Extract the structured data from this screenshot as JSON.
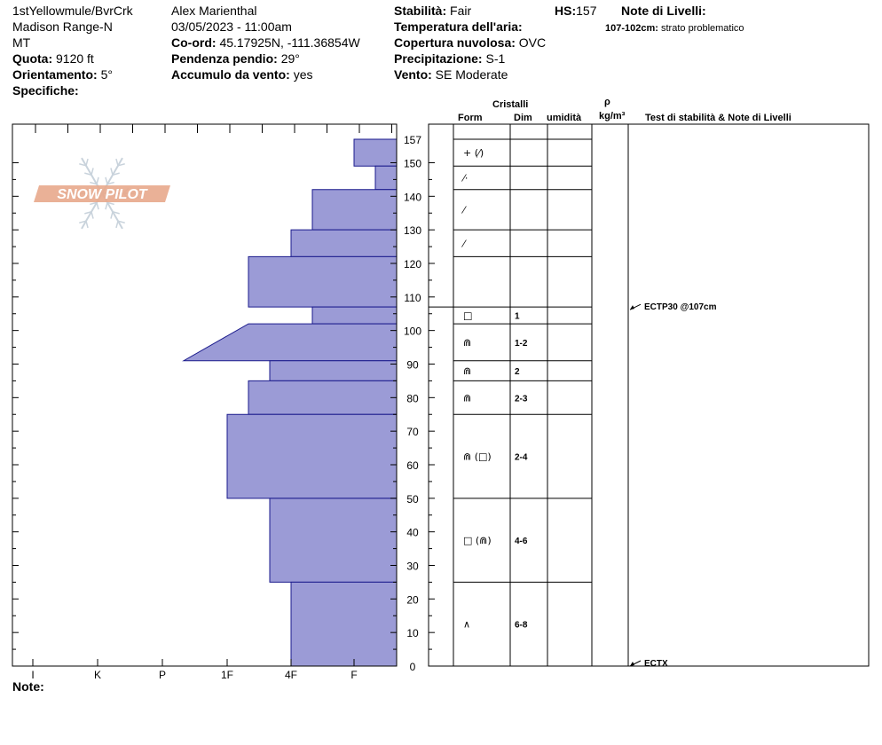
{
  "header": {
    "location": "1stYellowmule/BvrCrk",
    "range": "Madison Range-N",
    "state": "MT",
    "quota_label": "Quota:",
    "quota_value": "9120 ft",
    "orientamento_label": "Orientamento:",
    "orientamento_value": "5°",
    "specifiche_label": "Specifiche:",
    "observer": "Alex Marienthal",
    "datetime": "03/05/2023 - 11:00am",
    "coord_label": "Co-ord:",
    "coord_value": "45.17925N, -111.36854W",
    "pendenza_label": "Pendenza pendio:",
    "pendenza_value": "29°",
    "accumulo_label": "Accumulo da vento:",
    "accumulo_value": "yes",
    "stabilita_label": "Stabilità:",
    "stabilita_value": "Fair",
    "hs_label": "HS:",
    "hs_value": "157",
    "temp_label": "Temperatura dell'aria:",
    "copertura_label": "Copertura nuvolosa:",
    "copertura_value": "OVC",
    "precip_label": "Precipitazione:",
    "precip_value": "S-1",
    "vento_label": "Vento:",
    "vento_value": "SE Moderate",
    "note_livelli_label": "Note di Livelli:",
    "note_livelli_range": "107-102cm:",
    "note_livelli_text": "strato problematico"
  },
  "columns": {
    "cristalli": "Cristalli",
    "form": "Form",
    "dim": "Dim",
    "umidita": "umidità",
    "rho": "ρ",
    "density_unit": "kg/m³",
    "tests": "Test di stabilità & Note di Livelli"
  },
  "logo_text": "SNOW PILOT",
  "note_label": "Note:",
  "chart_data": {
    "type": "bar",
    "title": "",
    "height_axis": {
      "ticks": [
        0,
        10,
        20,
        30,
        40,
        50,
        60,
        70,
        80,
        90,
        100,
        110,
        120,
        130,
        140,
        150,
        157
      ],
      "range": [
        0,
        157
      ]
    },
    "hardness_axis": {
      "labels": [
        "I",
        "K",
        "P",
        "1F",
        "4F",
        "F"
      ]
    },
    "layers": [
      {
        "top": 157,
        "bottom": 149,
        "hardness": "F",
        "hardness_bottom": "F",
        "form": "+ (⁄)",
        "dim": ""
      },
      {
        "top": 149,
        "bottom": 142,
        "hardness": "F+",
        "hardness_bottom": "F+",
        "form": "⁄·",
        "dim": ""
      },
      {
        "top": 142,
        "bottom": 130,
        "hardness": "4F+",
        "hardness_bottom": "4F+",
        "form": "⁄",
        "dim": ""
      },
      {
        "top": 130,
        "bottom": 122,
        "hardness": "4F",
        "hardness_bottom": "4F",
        "form": "⁄",
        "dim": ""
      },
      {
        "top": 122,
        "bottom": 107,
        "hardness": "1F+",
        "hardness_bottom": "1F+",
        "form": "",
        "dim": ""
      },
      {
        "top": 107,
        "bottom": 102,
        "hardness": "4F+",
        "hardness_bottom": "4F+",
        "form": "□",
        "dim": "1"
      },
      {
        "top": 102,
        "bottom": 91,
        "hardness": "1F+",
        "hardness_bottom": "P+",
        "form": "⋒",
        "dim": "1-2"
      },
      {
        "top": 91,
        "bottom": 85,
        "hardness": "4F-",
        "hardness_bottom": "4F-",
        "form": "⋒",
        "dim": "2"
      },
      {
        "top": 85,
        "bottom": 75,
        "hardness": "1F+",
        "hardness_bottom": "1F+",
        "form": "⋒",
        "dim": "2-3"
      },
      {
        "top": 75,
        "bottom": 50,
        "hardness": "1F",
        "hardness_bottom": "1F",
        "form": "⋒ (□)",
        "dim": "2-4"
      },
      {
        "top": 50,
        "bottom": 25,
        "hardness": "4F-",
        "hardness_bottom": "4F-",
        "form": "□ (⋒)",
        "dim": "4-6"
      },
      {
        "top": 25,
        "bottom": 0,
        "hardness": "4F",
        "hardness_bottom": "4F",
        "form": "∧",
        "dim": "6-8"
      }
    ],
    "tests": [
      {
        "height": 107,
        "label": "ECTP30 @107cm"
      },
      {
        "height": 0,
        "label": "ECTX"
      }
    ],
    "grid": false
  },
  "colors": {
    "layer_fill": "#9b9bd6",
    "layer_stroke": "#1a1a8c",
    "logo": "#e8a98c"
  }
}
